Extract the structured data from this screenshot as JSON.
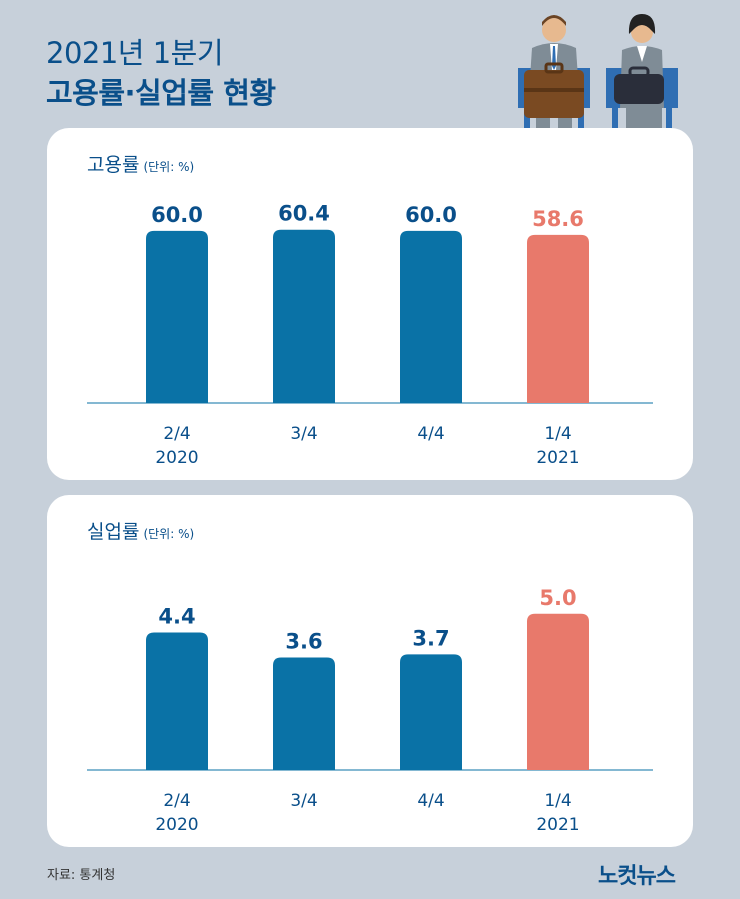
{
  "header": {
    "title_line1": "2021년 1분기",
    "title_line2": "고용률·실업률 현황"
  },
  "chart_data": [
    {
      "type": "bar",
      "title": "고용률",
      "unit": "(단위: %)",
      "categories": [
        "2/4\n2020",
        "3/4",
        "4/4",
        "1/4\n2021"
      ],
      "values": [
        60.0,
        60.4,
        60.0,
        58.6
      ],
      "value_labels": [
        "60.0",
        "60.4",
        "60.0",
        "58.6"
      ],
      "ylim": [
        0,
        61
      ],
      "colors": [
        "#0a72a6",
        "#0a72a6",
        "#0a72a6",
        "#e8796b"
      ],
      "label_colors": [
        "#0a4f8a",
        "#0a4f8a",
        "#0a4f8a",
        "#e8796b"
      ]
    },
    {
      "type": "bar",
      "title": "실업률",
      "unit": "(단위: %)",
      "categories": [
        "2/4\n2020",
        "3/4",
        "4/4",
        "1/4\n2021"
      ],
      "values": [
        4.4,
        3.6,
        3.7,
        5.0
      ],
      "value_labels": [
        "4.4",
        "3.6",
        "3.7",
        "5.0"
      ],
      "ylim": [
        0,
        5.6
      ],
      "colors": [
        "#0a72a6",
        "#0a72a6",
        "#0a72a6",
        "#e8796b"
      ],
      "label_colors": [
        "#0a4f8a",
        "#0a4f8a",
        "#0a4f8a",
        "#e8796b"
      ]
    }
  ],
  "footer": {
    "source": "자료: 통계청",
    "logo": "노컷뉴스"
  },
  "illustration": {
    "icon": "seated-businesspeople-icon"
  }
}
